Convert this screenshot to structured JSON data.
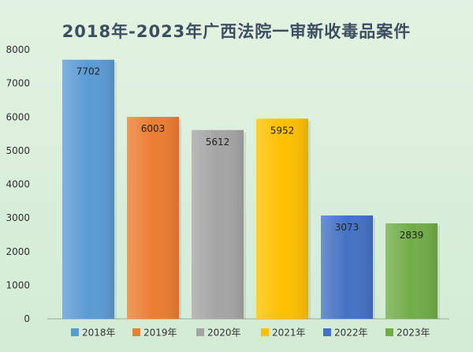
{
  "chart_data": {
    "type": "bar",
    "title": "2018年-2023年广西法院一审新收毒品案件",
    "xlabel": "",
    "ylabel": "",
    "categories": [
      "2018年",
      "2019年",
      "2020年",
      "2021年",
      "2022年",
      "2023年"
    ],
    "values": [
      7702,
      6003,
      5612,
      5952,
      3073,
      2839
    ],
    "bar_colors": [
      "#5b9bd5",
      "#ed7d31",
      "#a5a5a5",
      "#ffc000",
      "#4472c4",
      "#70ad47"
    ],
    "ylim": [
      0,
      8000
    ],
    "yticks": [
      0,
      1000,
      2000,
      3000,
      4000,
      5000,
      6000,
      7000,
      8000
    ],
    "grid": false,
    "data_labels": true,
    "legend": {
      "position": "bottom",
      "entries": [
        "2018年",
        "2019年",
        "2020年",
        "2021年",
        "2022年",
        "2023年"
      ]
    }
  }
}
